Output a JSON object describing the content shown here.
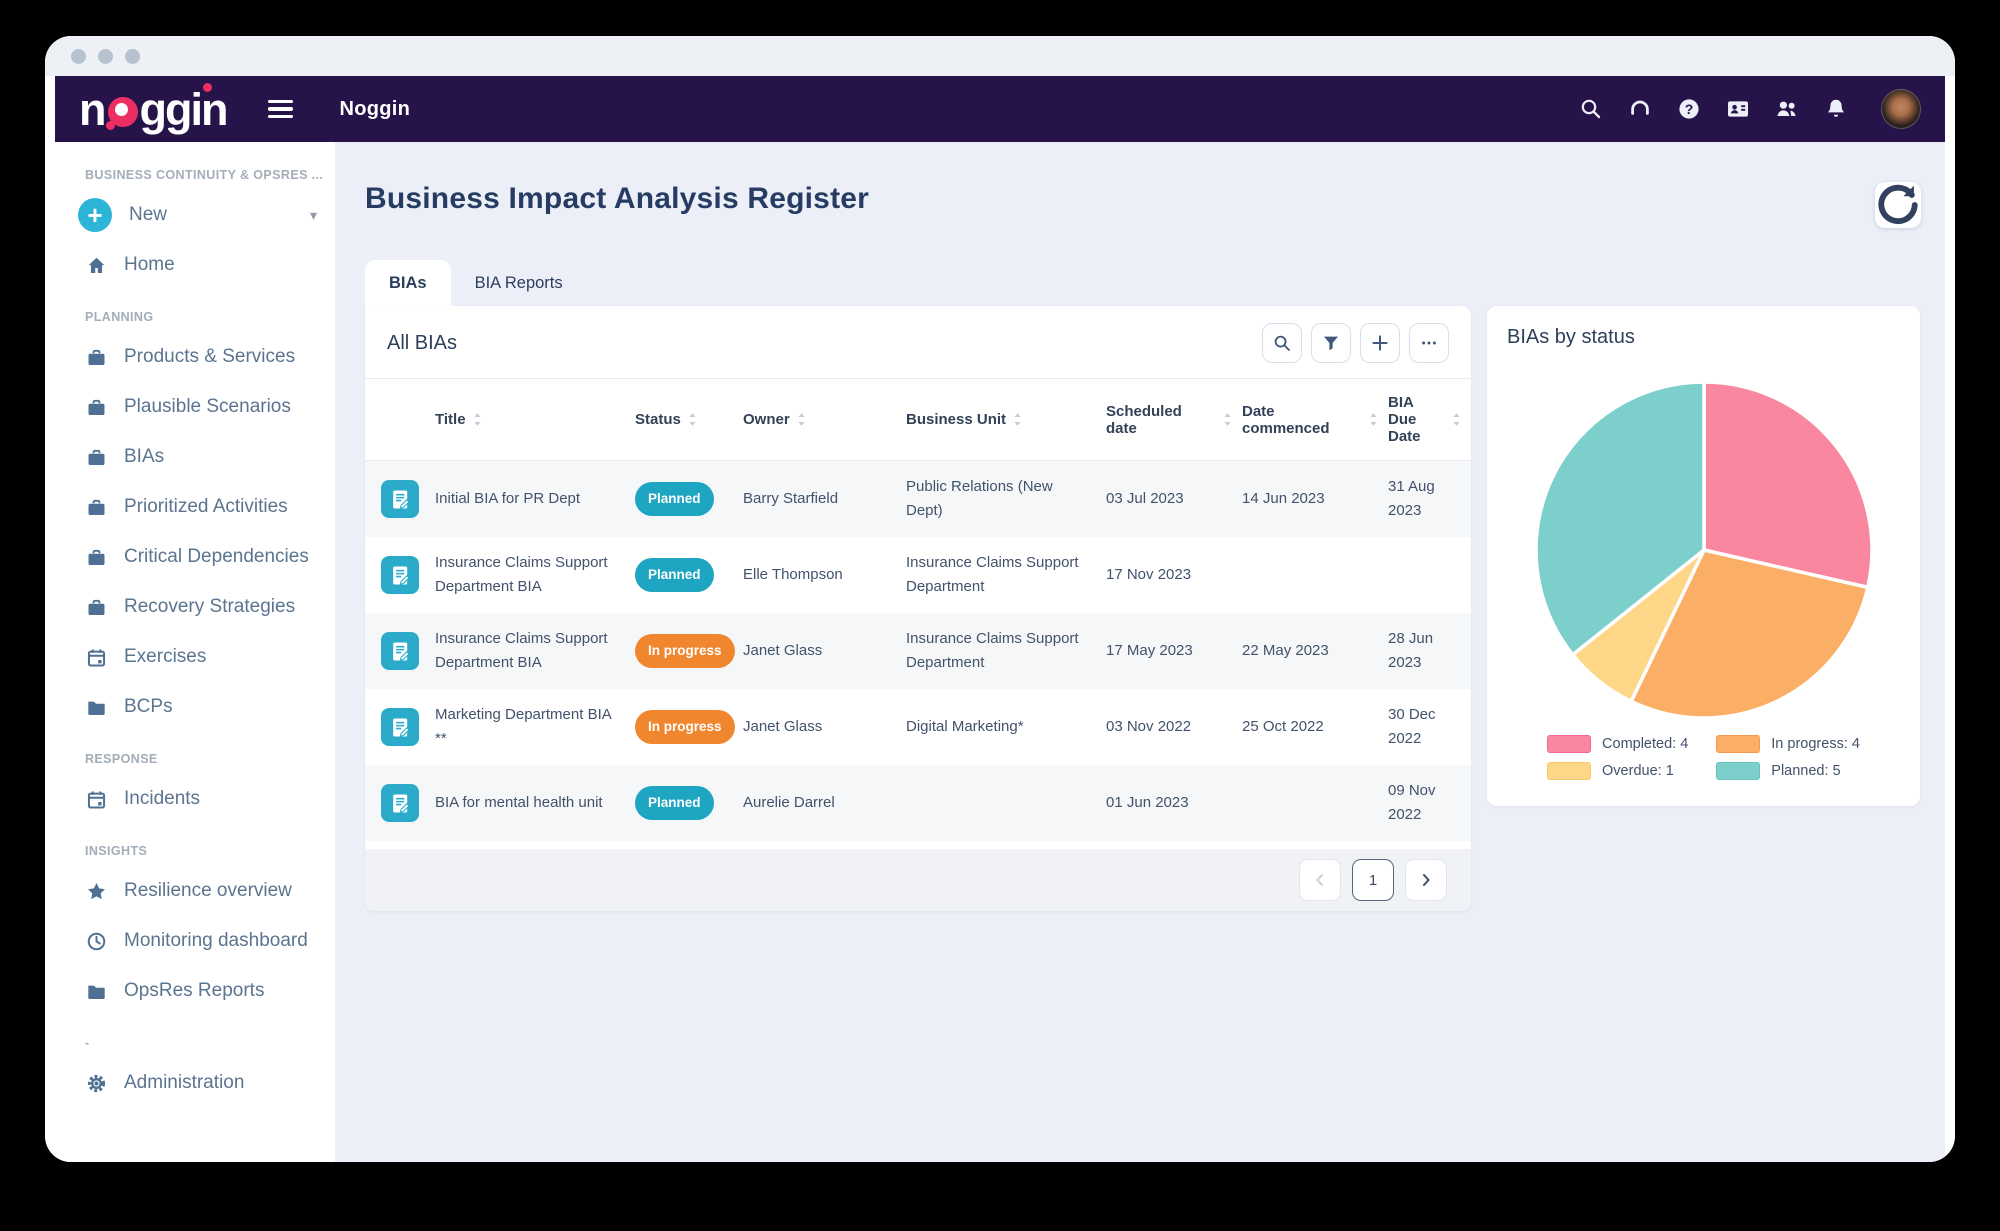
{
  "window": {
    "dots": 3
  },
  "topbar": {
    "brand": "noggin",
    "app_title": "Noggin",
    "menu_icon": "hamburger-menu-icon",
    "icons": [
      "search-icon",
      "headset-icon",
      "help-icon",
      "contact-card-icon",
      "users-icon",
      "bell-icon"
    ],
    "avatar": "user-avatar"
  },
  "sidebar": {
    "sections": [
      {
        "label": "BUSINESS CONTINUITY & OPSRES ...",
        "items": [
          {
            "label": "New",
            "icon": "plus-circle-icon",
            "caret": true
          },
          {
            "label": "Home",
            "icon": "home-icon"
          }
        ]
      },
      {
        "label": "PLANNING",
        "items": [
          {
            "label": "Products & Services",
            "icon": "briefcase-icon"
          },
          {
            "label": "Plausible Scenarios",
            "icon": "briefcase-icon"
          },
          {
            "label": "BIAs",
            "icon": "briefcase-icon"
          },
          {
            "label": "Prioritized Activities",
            "icon": "briefcase-icon"
          },
          {
            "label": "Critical Dependencies",
            "icon": "briefcase-icon"
          },
          {
            "label": "Recovery Strategies",
            "icon": "briefcase-icon"
          },
          {
            "label": "Exercises",
            "icon": "calendar-icon"
          },
          {
            "label": "BCPs",
            "icon": "folder-icon"
          }
        ]
      },
      {
        "label": "RESPONSE",
        "items": [
          {
            "label": "Incidents",
            "icon": "calendar-icon"
          }
        ]
      },
      {
        "label": "INSIGHTS",
        "items": [
          {
            "label": "Resilience overview",
            "icon": "star-icon"
          },
          {
            "label": "Monitoring dashboard",
            "icon": "clock-icon"
          },
          {
            "label": "OpsRes Reports",
            "icon": "folder-icon"
          }
        ]
      },
      {
        "label": "-",
        "items": [
          {
            "label": "Administration",
            "icon": "gear-icon"
          }
        ]
      }
    ]
  },
  "page": {
    "title": "Business Impact Analysis Register",
    "tabs": [
      {
        "label": "BIAs",
        "active": true
      },
      {
        "label": "BIA Reports",
        "active": false
      }
    ],
    "refresh_icon": "refresh-icon"
  },
  "table": {
    "card_title": "All BIAs",
    "toolbar_icons": [
      "search-icon",
      "filter-icon",
      "plus-icon",
      "ellipsis-icon"
    ],
    "columns": [
      "Title",
      "Status",
      "Owner",
      "Business Unit",
      "Scheduled date",
      "Date commenced",
      "BIA Due Date"
    ],
    "status_colors": {
      "Planned": "#1EA5C1",
      "In progress": "#F0872F"
    },
    "row_icon": "bia-document-icon",
    "rows": [
      {
        "title": "Initial BIA for PR Dept",
        "status": "Planned",
        "owner": "Barry Starfield",
        "business_unit": "Public Relations (New Dept)",
        "scheduled_date": "03 Jul 2023",
        "date_commenced": "14 Jun 2023",
        "bia_due_date": "31 Aug 2023"
      },
      {
        "title": "Insurance Claims Support Department BIA",
        "status": "Planned",
        "owner": "Elle Thompson",
        "business_unit": "Insurance Claims Support Department",
        "scheduled_date": "17 Nov 2023",
        "date_commenced": "",
        "bia_due_date": ""
      },
      {
        "title": "Insurance Claims Support Department BIA",
        "status": "In progress",
        "owner": "Janet Glass",
        "business_unit": "Insurance Claims Support Department",
        "scheduled_date": "17 May 2023",
        "date_commenced": "22 May 2023",
        "bia_due_date": "28 Jun 2023"
      },
      {
        "title": "Marketing Department BIA **",
        "status": "In progress",
        "owner": "Janet Glass",
        "business_unit": "Digital Marketing*",
        "scheduled_date": "03 Nov 2022",
        "date_commenced": "25 Oct 2022",
        "bia_due_date": "30 Dec 2022"
      },
      {
        "title": "BIA for mental health unit",
        "status": "Planned",
        "owner": "Aurelie Darrel",
        "business_unit": "",
        "scheduled_date": "01 Jun 2023",
        "date_commenced": "",
        "bia_due_date": "09 Nov 2022"
      }
    ],
    "pagination": {
      "current_page": "1",
      "prev_icon": "chevron-left-icon",
      "next_icon": "chevron-right-icon"
    }
  },
  "chart_data": {
    "type": "pie",
    "title": "BIAs by status",
    "labels": [
      "Completed",
      "In progress",
      "Overdue",
      "Planned"
    ],
    "values": [
      4,
      4,
      1,
      5
    ],
    "colors": [
      "#F8879F",
      "#FBAF66",
      "#FDD687",
      "#7CCFCB"
    ],
    "swatch_borders": [
      "#F4688C",
      "#F69A4D",
      "#F8C967",
      "#63C4C0"
    ],
    "legend_position": "bottom",
    "start_angle_deg": 0,
    "direction": "clockwise"
  }
}
